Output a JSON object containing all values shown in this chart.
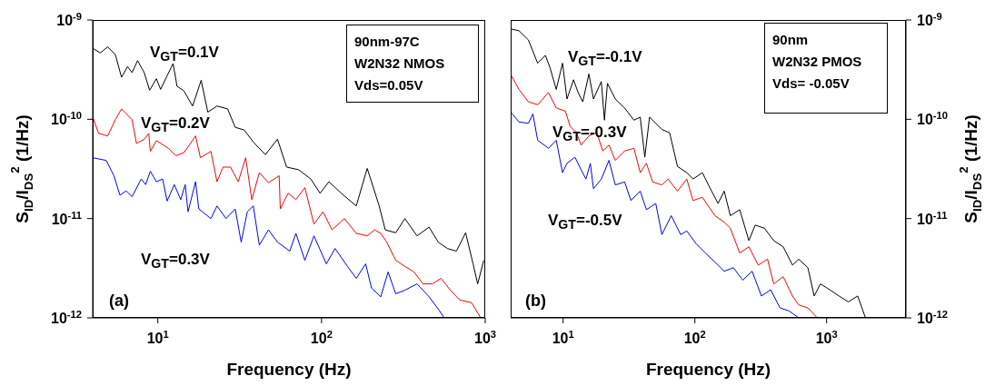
{
  "chart_data": [
    {
      "type": "line",
      "xlabel": "Frequency (Hz)",
      "ylabel": "S$_{ID}$/I$_{DS}$$^{2}$ (1/Hz)",
      "log": "xy",
      "xlim": [
        4,
        1000
      ],
      "xticks": [
        {
          "value": 10,
          "label": "10$^{1}$"
        },
        {
          "value": 100,
          "label": "10$^{2}$"
        },
        {
          "value": 1000,
          "label": "10$^{3}$"
        }
      ],
      "ylim": [
        1e-12,
        1e-09
      ],
      "yticks": [
        {
          "value": 1e-12,
          "label": "10$^{-12}$"
        },
        {
          "value": 1e-11,
          "label": "10$^{-11}$"
        },
        {
          "value": 1e-10,
          "label": "10$^{-10}$"
        },
        {
          "value": 1e-09,
          "label": "10$^{-9}$"
        }
      ],
      "annotations": [
        "90nm-97C",
        "W2N32 NMOS",
        "Vds=0.05V",
        "(a)"
      ],
      "series": [
        {
          "name": "V$_{GT}$=0.1V",
          "color": "#000000",
          "x": [
            4.0,
            4.45,
            4.94,
            5.5,
            6.0,
            6.53,
            6.96,
            7.52,
            8.26,
            8.91,
            9.8,
            10.4,
            11.4,
            12.4,
            13.1,
            14.4,
            16.3,
            18.4,
            20.2,
            23.0,
            26.7,
            29.7,
            33.7,
            38.3,
            45.4,
            53.8,
            61.2,
            72.6,
            86.1,
            98,
            111,
            132,
            163,
            190,
            202,
            225,
            245,
            284,
            323,
            383,
            454,
            516,
            587,
            667,
            759,
            843,
            899,
            980
          ],
          "values": [
            5.2e-10,
            4.66e-10,
            5.35e-10,
            4.49e-10,
            2.65e-10,
            3.39e-10,
            2.95e-10,
            3.9e-10,
            2.95e-10,
            1.96e-10,
            2.56e-10,
            2e-10,
            2.75e-10,
            3.64e-10,
            2.15e-10,
            1.94e-10,
            1.36e-10,
            2.47e-10,
            1.18e-10,
            1.36e-10,
            1.27e-10,
            8.3e-11,
            7.8e-11,
            5.9e-11,
            4.4e-11,
            6.3e-11,
            3.3e-11,
            3.1e-11,
            2.5e-11,
            1.8e-11,
            2.35e-11,
            1.8e-11,
            1.34e-11,
            3.2e-11,
            2.35e-11,
            1.34e-11,
            7.7e-12,
            7.2e-12,
            1e-11,
            6.7e-12,
            8.2e-12,
            5.8e-12,
            5e-12,
            4.7e-12,
            7.2e-12,
            3.5e-12,
            2.2e-12,
            3.8e-12
          ]
        },
        {
          "name": "V$_{GT}$=0.2V",
          "color": "#ff0000",
          "x": [
            4.0,
            4.35,
            4.94,
            5.5,
            6.0,
            6.96,
            7.41,
            8.26,
            8.8,
            9.0,
            9.8,
            11.6,
            12.9,
            14.4,
            15.6,
            17.0,
            18.2,
            21.1,
            23.0,
            25.0,
            27.8,
            31.0,
            34.4,
            37.5,
            41.7,
            47.4,
            55.1,
            56,
            62.5,
            69.7,
            79.1,
            89.9,
            102,
            116,
            138,
            163,
            190,
            211,
            230,
            250,
            284,
            323,
            367,
            417,
            474,
            538,
            612,
            697,
            826,
            938
          ],
          "values": [
            1.06e-10,
            7.2e-11,
            6.8e-11,
            9.9e-11,
            1.27e-10,
            9.9e-11,
            5.7e-11,
            6.3e-11,
            7.2e-11,
            4.75e-11,
            6.1e-11,
            5.1e-11,
            4.3e-11,
            4.6e-11,
            5.5e-11,
            6.8e-11,
            4.1e-11,
            4.75e-11,
            2.35e-11,
            3.3e-11,
            3.3e-11,
            2.35e-11,
            4.1e-11,
            1.55e-11,
            2.9e-11,
            2.3e-11,
            2.7e-11,
            1.25e-11,
            1.8e-11,
            1.55e-11,
            2.05e-11,
            8.8e-12,
            1.17e-11,
            7.7e-12,
            1e-11,
            7.1e-12,
            6.7e-12,
            7.7e-12,
            7.1e-12,
            5.8e-12,
            3.8e-12,
            3.3e-12,
            2.9e-12,
            2.2e-12,
            2.2e-12,
            2.5e-12,
            1.9e-12,
            1.52e-12,
            1.42e-12,
            1e-12
          ]
        },
        {
          "name": "V$_{GT}$=0.3V",
          "color": "#0000ff",
          "x": [
            4.0,
            4.84,
            5.39,
            5.87,
            6.4,
            6.96,
            7.91,
            8.43,
            9.0,
            9.8,
            10.7,
            11.4,
            12.6,
            13.8,
            14.7,
            15.3,
            17.0,
            17.8,
            21.1,
            23.0,
            26.1,
            29.7,
            32.3,
            35.2,
            38.3,
            41.7,
            47.4,
            53.8,
            64.0,
            69.7,
            79.1,
            89.9,
            107,
            121,
            144,
            163,
            186,
            202,
            230,
            255,
            284,
            323,
            383,
            454,
            516,
            562
          ],
          "values": [
            4.1e-11,
            3.85e-11,
            2.7e-11,
            1.72e-11,
            1.9e-11,
            1.66e-11,
            2.5e-11,
            2.2e-11,
            3e-11,
            2.35e-11,
            2.5e-11,
            1.5e-11,
            2.2e-11,
            1.55e-11,
            2.2e-11,
            1.17e-11,
            2.35e-11,
            1.25e-11,
            1e-11,
            1.34e-11,
            1e-11,
            1.25e-11,
            5.8e-12,
            1.17e-11,
            1.34e-11,
            5.4e-12,
            7.7e-12,
            5.8e-12,
            4.7e-12,
            7.1e-12,
            3.8e-12,
            6.7e-12,
            3.5e-12,
            5e-12,
            3.3e-12,
            2.5e-12,
            3.5e-12,
            2e-12,
            1.63e-12,
            2.9e-12,
            1.75e-12,
            1.9e-12,
            2.2e-12,
            1.63e-12,
            1.23e-12,
            1e-12
          ]
        }
      ]
    },
    {
      "type": "line",
      "xlabel": "Frequency (Hz)",
      "ylabel": "S$_{ID}$/I$_{DS}$$^{2}$ (1/Hz)",
      "log": "xy",
      "xlim": [
        4,
        4000
      ],
      "xticks": [
        {
          "value": 10,
          "label": "10$^{1}$"
        },
        {
          "value": 100,
          "label": "10$^{2}$"
        },
        {
          "value": 1000,
          "label": "10$^{3}$"
        }
      ],
      "ylim": [
        1e-12,
        1e-09
      ],
      "yticks": [
        {
          "value": 1e-12,
          "label": "10$^{-12}$"
        },
        {
          "value": 1e-11,
          "label": "10$^{-11}$"
        },
        {
          "value": 1e-10,
          "label": "10$^{-10}$"
        },
        {
          "value": 1e-09,
          "label": "10$^{-9}$"
        }
      ],
      "annotations": [
        "90nm",
        "W2N32 PMOS",
        "Vds= -0.05V",
        "(b)"
      ],
      "series": [
        {
          "name": "V$_{GT}$=-0.1V",
          "color": "#000000",
          "x": [
            4.04,
            4.62,
            5.45,
            6.41,
            7.34,
            7.96,
            8.87,
            9.9,
            10.7,
            12.0,
            13.0,
            14.1,
            15.7,
            17.0,
            19.5,
            20.6,
            21.7,
            24.9,
            29.3,
            34.5,
            38.5,
            41.7,
            45.3,
            56.2,
            64.4,
            73.8,
            86.9,
            96.8,
            114,
            134,
            150,
            167,
            186,
            219,
            257,
            287,
            337,
            397,
            468,
            551,
            614,
            721,
            805,
            897,
            1057,
            1242,
            1462,
            1722,
            1972
          ],
          "values": [
            8.1e-10,
            7.8e-10,
            6.3e-10,
            3.67e-10,
            4.4e-10,
            3.3e-10,
            2e-10,
            3.67e-10,
            1.6e-10,
            2.5e-10,
            1.86e-10,
            1.5e-10,
            2.86e-10,
            1.6e-10,
            2.4e-10,
            9.8e-11,
            2.3e-10,
            1.6e-10,
            1.3e-10,
            9.8e-11,
            1.05e-10,
            4.15e-11,
            1.05e-10,
            7.9e-11,
            7.3e-11,
            3.35e-11,
            2.9e-11,
            2.5e-11,
            2.9e-11,
            1.89e-11,
            1.42e-11,
            1.89e-11,
            1.07e-11,
            1.23e-11,
            6e-12,
            8.6e-12,
            8e-12,
            6e-12,
            5.2e-12,
            3.4e-12,
            3.9e-12,
            3.2e-12,
            1.66e-12,
            2.2e-12,
            1.92e-12,
            1.66e-12,
            1.45e-12,
            1.66e-12,
            1e-12
          ]
        },
        {
          "name": "V$_{GT}$=-0.3V",
          "color": "#ff0000",
          "x": [
            4.04,
            4.62,
            5.45,
            6.41,
            7.75,
            8.87,
            10.4,
            11.3,
            12.6,
            13.7,
            15.7,
            18.0,
            20.0,
            22.3,
            24.9,
            29.3,
            34.5,
            38.5,
            42.9,
            47.8,
            56.2,
            62.7,
            73.8,
            86.9,
            96.8,
            114,
            142,
            167,
            186,
            219,
            257,
            303,
            356,
            397,
            468,
            551,
            614,
            721,
            849
          ],
          "values": [
            2.76e-10,
            2e-10,
            1.5e-10,
            1.4e-10,
            1.86e-10,
            1.3e-10,
            1.21e-10,
            8.5e-11,
            7.35e-11,
            5.5e-11,
            6.8e-11,
            7.35e-11,
            4.8e-11,
            5.5e-11,
            3.86e-11,
            4.8e-11,
            5.1e-11,
            2.9e-11,
            3.6e-11,
            2.34e-11,
            2.18e-11,
            2.5e-11,
            1.89e-11,
            2.5e-11,
            1.52e-11,
            1.64e-11,
            1.07e-11,
            9.2e-12,
            8e-12,
            4.5e-12,
            5.2e-12,
            3.4e-12,
            3.9e-12,
            2.2e-12,
            2.6e-12,
            1.66e-12,
            1.35e-12,
            1.26e-12,
            1e-12
          ]
        },
        {
          "name": "V$_{GT}$=-0.5V",
          "color": "#0000ff",
          "x": [
            4.04,
            4.62,
            5.45,
            5.9,
            6.41,
            7.75,
            8.87,
            9.9,
            10.7,
            12.3,
            13.7,
            14.9,
            16.1,
            17.0,
            19.5,
            22.3,
            24.9,
            29.3,
            32.7,
            38.5,
            42.9,
            50.5,
            56.2,
            66.2,
            78.0,
            86.9,
            102,
            120,
            142,
            167,
            196,
            231,
            272,
            320,
            376,
            443,
            521,
            614
          ],
          "values": [
            1.17e-10,
            9.4e-11,
            9.1e-11,
            1.13e-10,
            6.15e-11,
            5.1e-11,
            6.15e-11,
            2.9e-11,
            3.6e-11,
            4.15e-11,
            3.1e-11,
            2.5e-11,
            3.6e-11,
            2e-11,
            2.5e-11,
            3.86e-11,
            2.18e-11,
            2.34e-11,
            1.52e-11,
            1.89e-11,
            1.23e-11,
            1.42e-11,
            6.9e-12,
            1.07e-11,
            6.9e-12,
            7.5e-12,
            5.6e-12,
            4.5e-12,
            3.65e-12,
            2.95e-12,
            3.2e-12,
            2.4e-12,
            2.95e-12,
            1.66e-12,
            1.92e-12,
            1.26e-12,
            1.17e-12,
            1e-12
          ]
        }
      ]
    }
  ]
}
